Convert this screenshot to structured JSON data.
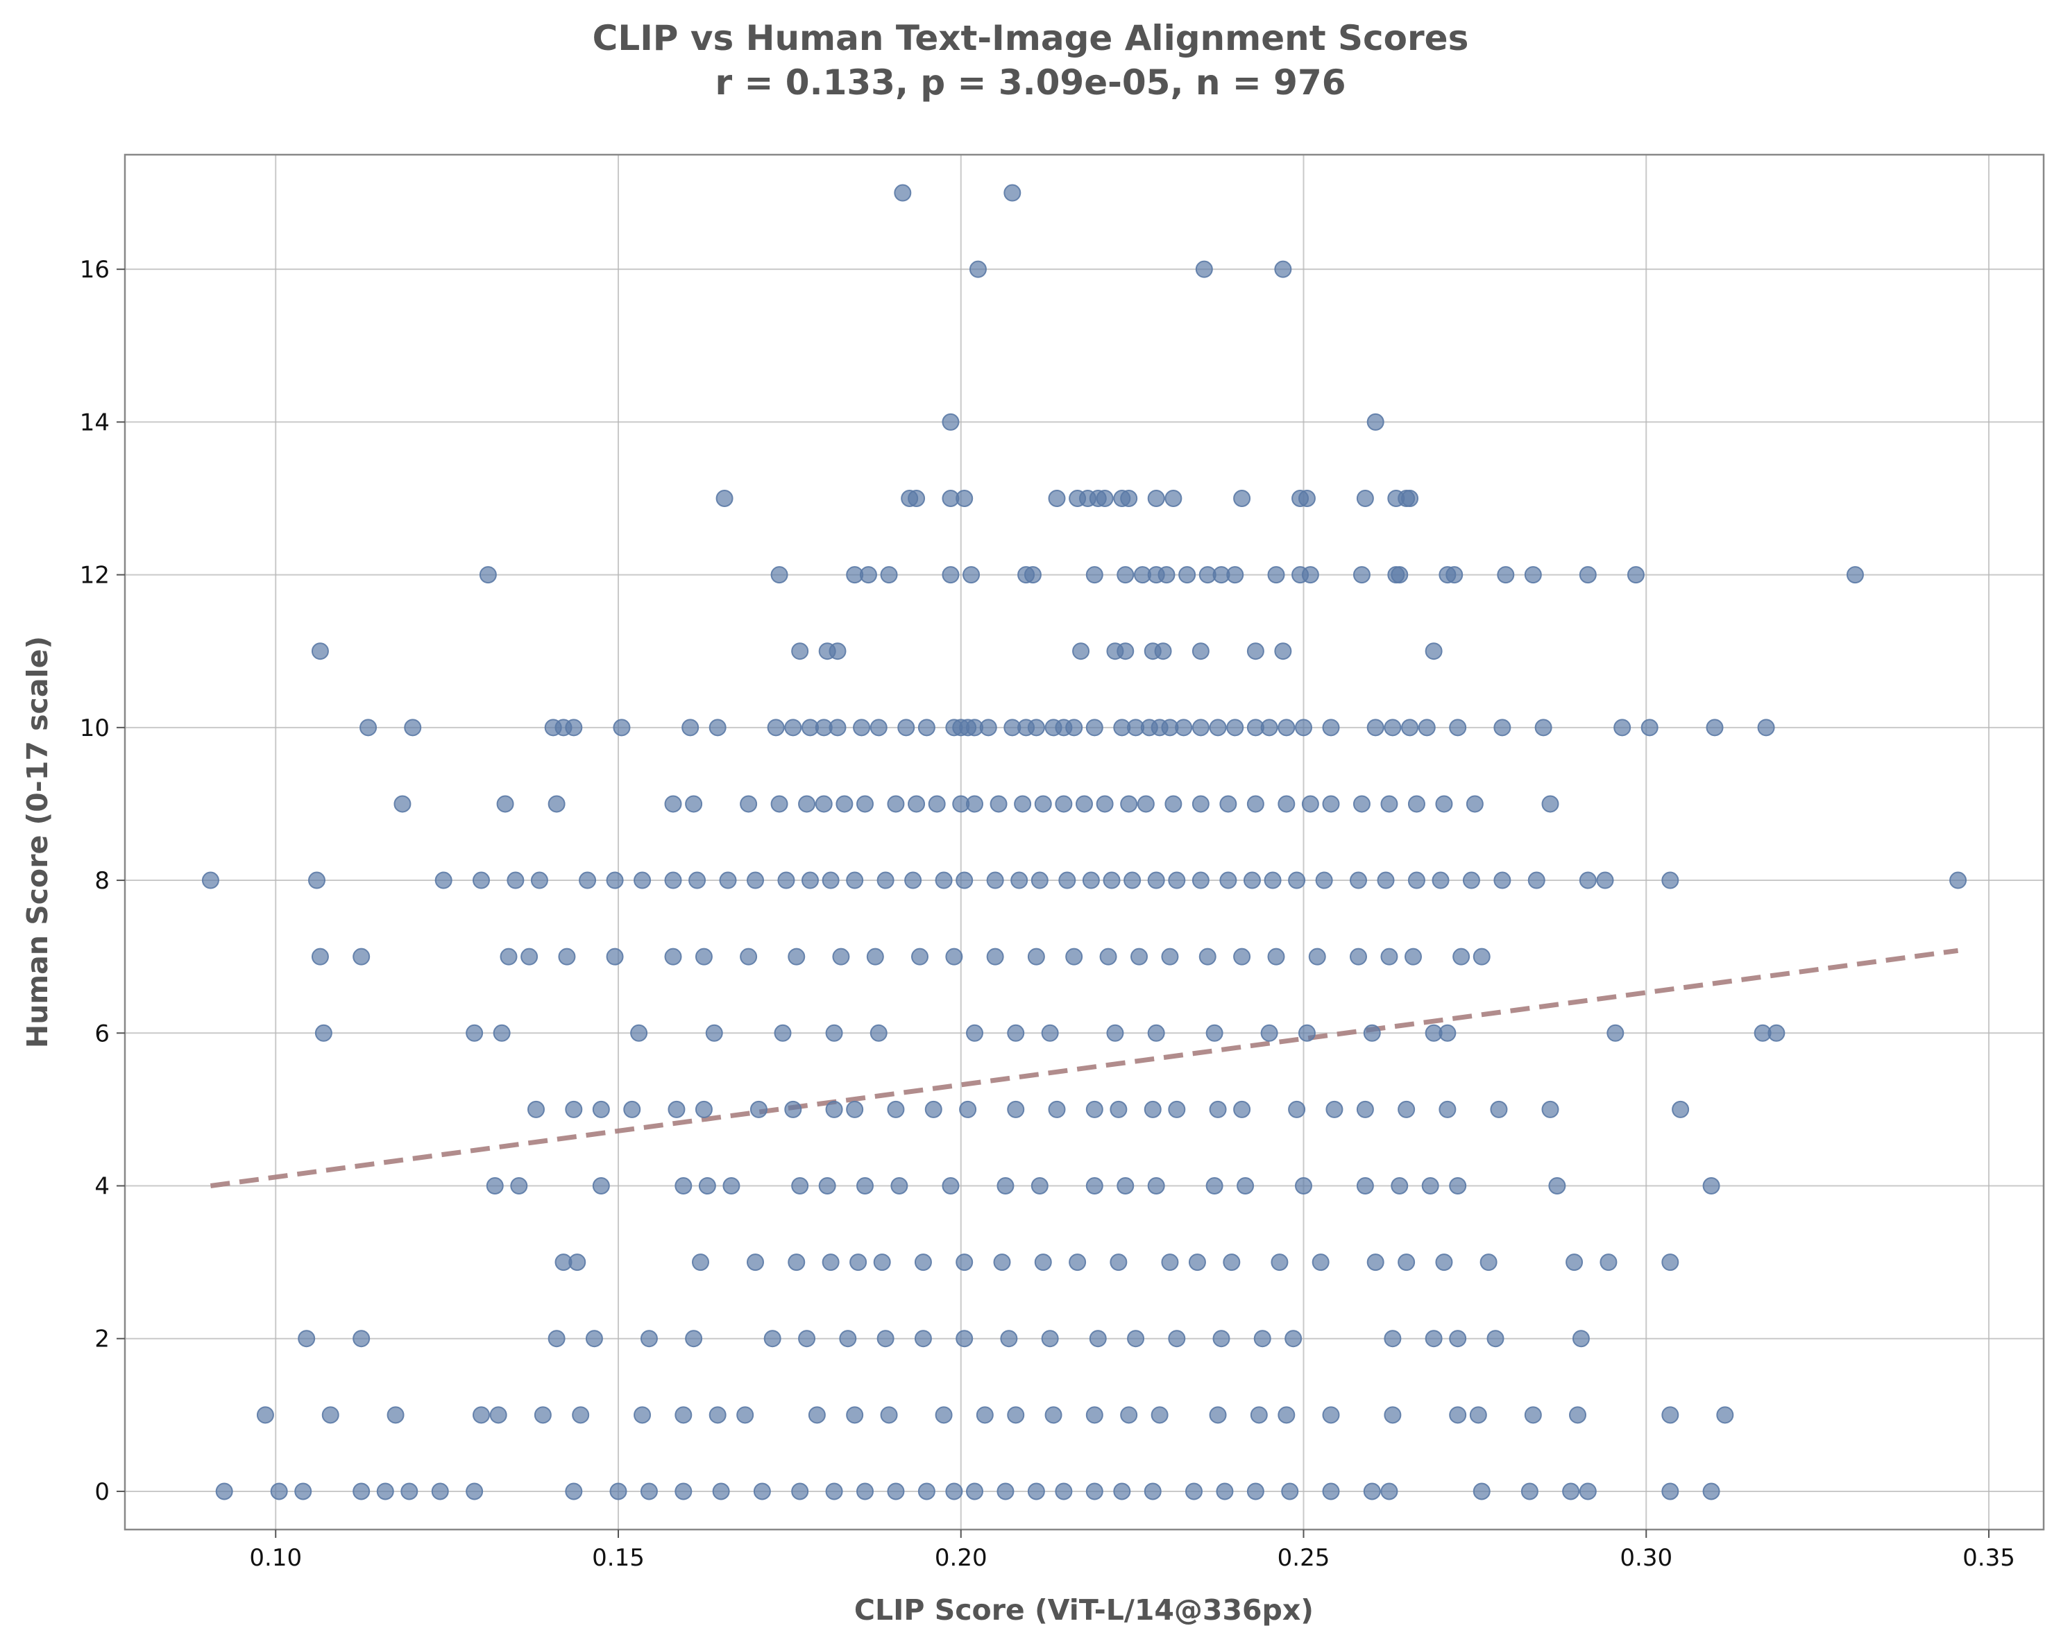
{
  "chart_data": {
    "type": "scatter",
    "title": "CLIP vs Human Text-Image Alignment Scores",
    "subtitle": "r = 0.133, p = 3.09e-05, n = 976",
    "xlabel": "CLIP Score (ViT-L/14@336px)",
    "ylabel": "Human Score (0-17 scale)",
    "xlim": [
      0.078,
      0.358
    ],
    "ylim": [
      -0.5,
      17.5
    ],
    "xticks": [
      0.1,
      0.15,
      0.2,
      0.25,
      0.3,
      0.35
    ],
    "xtick_labels": [
      "0.10",
      "0.15",
      "0.20",
      "0.25",
      "0.30",
      "0.35"
    ],
    "yticks": [
      0,
      2,
      4,
      6,
      8,
      10,
      12,
      14,
      16
    ],
    "ytick_labels": [
      "0",
      "2",
      "4",
      "6",
      "8",
      "10",
      "12",
      "14",
      "16"
    ],
    "grid": true,
    "point_color": "#5b7aa6",
    "trend_color": "#a87f80",
    "trend_line": {
      "x": [
        0.0905,
        0.3455
      ],
      "y": [
        4.0,
        7.08
      ]
    },
    "points_by_score": {
      "17": [
        0.1915,
        0.2075
      ],
      "16": [
        0.2025,
        0.2355,
        0.247
      ],
      "14": [
        0.1985,
        0.2605
      ],
      "13": [
        0.1655,
        0.1925,
        0.1935,
        0.1985,
        0.2005,
        0.214,
        0.217,
        0.2185,
        0.22,
        0.221,
        0.2235,
        0.2245,
        0.2285,
        0.231,
        0.241,
        0.2495,
        0.2505,
        0.259,
        0.2635,
        0.265,
        0.2655
      ],
      "12": [
        0.131,
        0.1735,
        0.1845,
        0.1865,
        0.1895,
        0.1985,
        0.2015,
        0.2095,
        0.2105,
        0.2195,
        0.224,
        0.2265,
        0.2285,
        0.23,
        0.233,
        0.236,
        0.238,
        0.24,
        0.246,
        0.2495,
        0.251,
        0.2585,
        0.2635,
        0.264,
        0.271,
        0.272,
        0.2795,
        0.2835,
        0.2915,
        0.2985,
        0.3305
      ],
      "11": [
        0.1065,
        0.1765,
        0.1805,
        0.182,
        0.2175,
        0.2225,
        0.224,
        0.228,
        0.2295,
        0.235,
        0.243,
        0.247,
        0.269
      ],
      "10": [
        0.1135,
        0.12,
        0.1405,
        0.142,
        0.1435,
        0.1505,
        0.1605,
        0.1645,
        0.173,
        0.1755,
        0.178,
        0.18,
        0.182,
        0.1855,
        0.188,
        0.192,
        0.195,
        0.199,
        0.2,
        0.201,
        0.202,
        0.204,
        0.2075,
        0.2095,
        0.211,
        0.2135,
        0.215,
        0.2165,
        0.2195,
        0.2235,
        0.2255,
        0.2275,
        0.229,
        0.2305,
        0.2325,
        0.235,
        0.2375,
        0.24,
        0.243,
        0.245,
        0.2475,
        0.25,
        0.254,
        0.2605,
        0.263,
        0.2655,
        0.268,
        0.2725,
        0.279,
        0.285,
        0.2965,
        0.3005,
        0.31,
        0.3175
      ],
      "9": [
        0.1185,
        0.1335,
        0.141,
        0.158,
        0.161,
        0.169,
        0.1735,
        0.1775,
        0.18,
        0.183,
        0.186,
        0.1905,
        0.1935,
        0.1965,
        0.2,
        0.202,
        0.2055,
        0.209,
        0.212,
        0.215,
        0.218,
        0.221,
        0.2245,
        0.227,
        0.231,
        0.235,
        0.239,
        0.243,
        0.2475,
        0.251,
        0.254,
        0.2585,
        0.2625,
        0.2665,
        0.2705,
        0.275,
        0.286
      ],
      "8": [
        0.0905,
        0.106,
        0.1245,
        0.13,
        0.135,
        0.1385,
        0.1455,
        0.1495,
        0.1535,
        0.158,
        0.1615,
        0.166,
        0.17,
        0.1745,
        0.178,
        0.181,
        0.1845,
        0.189,
        0.193,
        0.1975,
        0.2005,
        0.205,
        0.2085,
        0.2115,
        0.2155,
        0.219,
        0.222,
        0.225,
        0.2285,
        0.2315,
        0.235,
        0.239,
        0.2425,
        0.2455,
        0.249,
        0.253,
        0.258,
        0.262,
        0.2665,
        0.27,
        0.2745,
        0.279,
        0.284,
        0.2915,
        0.294,
        0.3035,
        0.3455
      ],
      "7": [
        0.1065,
        0.1125,
        0.134,
        0.137,
        0.1425,
        0.1495,
        0.158,
        0.1625,
        0.169,
        0.176,
        0.1825,
        0.1875,
        0.194,
        0.199,
        0.205,
        0.211,
        0.2165,
        0.2215,
        0.226,
        0.2305,
        0.236,
        0.241,
        0.246,
        0.252,
        0.258,
        0.2625,
        0.266,
        0.273,
        0.276
      ],
      "6": [
        0.107,
        0.129,
        0.133,
        0.153,
        0.164,
        0.174,
        0.1815,
        0.188,
        0.202,
        0.208,
        0.213,
        0.2225,
        0.2285,
        0.237,
        0.245,
        0.2505,
        0.26,
        0.269,
        0.271,
        0.2955,
        0.317,
        0.319
      ],
      "5": [
        0.138,
        0.1435,
        0.1475,
        0.152,
        0.1585,
        0.1625,
        0.1705,
        0.1755,
        0.1815,
        0.1845,
        0.1905,
        0.196,
        0.201,
        0.208,
        0.214,
        0.2195,
        0.223,
        0.228,
        0.2315,
        0.2375,
        0.241,
        0.249,
        0.2545,
        0.259,
        0.265,
        0.271,
        0.2785,
        0.286,
        0.305
      ],
      "4": [
        0.132,
        0.1355,
        0.1475,
        0.1595,
        0.163,
        0.1665,
        0.1765,
        0.1805,
        0.186,
        0.191,
        0.1985,
        0.2065,
        0.2115,
        0.2195,
        0.224,
        0.2285,
        0.237,
        0.2415,
        0.25,
        0.259,
        0.264,
        0.2685,
        0.2725,
        0.287,
        0.3095
      ],
      "3": [
        0.142,
        0.144,
        0.162,
        0.17,
        0.176,
        0.181,
        0.185,
        0.1885,
        0.1945,
        0.2005,
        0.206,
        0.212,
        0.217,
        0.223,
        0.2305,
        0.2345,
        0.2395,
        0.2465,
        0.2525,
        0.2605,
        0.265,
        0.2705,
        0.277,
        0.2895,
        0.2945,
        0.3035
      ],
      "2": [
        0.1045,
        0.1125,
        0.141,
        0.1465,
        0.1545,
        0.161,
        0.1725,
        0.1775,
        0.1835,
        0.189,
        0.1945,
        0.2005,
        0.207,
        0.213,
        0.22,
        0.2255,
        0.2315,
        0.238,
        0.244,
        0.2485,
        0.263,
        0.269,
        0.2725,
        0.278,
        0.2905
      ],
      "1": [
        0.0985,
        0.108,
        0.1175,
        0.13,
        0.1325,
        0.139,
        0.1445,
        0.1535,
        0.1595,
        0.1645,
        0.1685,
        0.179,
        0.1845,
        0.1895,
        0.1975,
        0.2035,
        0.208,
        0.2135,
        0.2195,
        0.2245,
        0.229,
        0.2375,
        0.2435,
        0.2475,
        0.254,
        0.263,
        0.2725,
        0.2755,
        0.2835,
        0.29,
        0.3035,
        0.3115
      ],
      "0": [
        0.0925,
        0.1005,
        0.104,
        0.1125,
        0.116,
        0.1195,
        0.124,
        0.129,
        0.1435,
        0.15,
        0.1545,
        0.1595,
        0.165,
        0.171,
        0.1765,
        0.1815,
        0.186,
        0.1905,
        0.195,
        0.199,
        0.202,
        0.2065,
        0.211,
        0.215,
        0.2195,
        0.2235,
        0.228,
        0.234,
        0.2385,
        0.243,
        0.248,
        0.254,
        0.26,
        0.2625,
        0.276,
        0.283,
        0.289,
        0.2915,
        0.3035,
        0.3095
      ]
    }
  }
}
